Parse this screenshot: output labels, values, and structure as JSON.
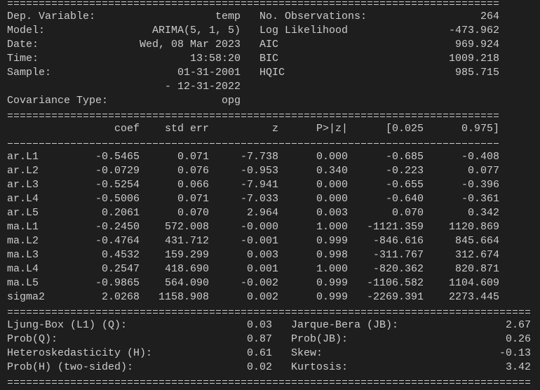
{
  "summary": {
    "header_rows": [
      {
        "label": "Dep. Variable:",
        "value": "temp",
        "label2": "No. Observations:",
        "value2": "264"
      },
      {
        "label": "Model:",
        "value": "ARIMA(5, 1, 5)",
        "label2": "Log Likelihood",
        "value2": "-473.962"
      },
      {
        "label": "Date:",
        "value": "Wed, 08 Mar 2023",
        "label2": "AIC",
        "value2": "969.924"
      },
      {
        "label": "Time:",
        "value": "13:58:20",
        "label2": "BIC",
        "value2": "1009.218"
      },
      {
        "label": "Sample:",
        "value": "01-31-2001",
        "label2": "HQIC",
        "value2": "985.715"
      },
      {
        "value": "- 12-31-2022"
      },
      {
        "label": "Covariance Type:",
        "value": "opg"
      }
    ],
    "coef_table": {
      "columns": [
        "coef",
        "std err",
        "z",
        "P>|z|",
        "[0.025",
        "0.975]"
      ],
      "rows": [
        {
          "name": "ar.L1",
          "cells": [
            "-0.5465",
            "0.071",
            "-7.738",
            "0.000",
            "-0.685",
            "-0.408"
          ]
        },
        {
          "name": "ar.L2",
          "cells": [
            "-0.0729",
            "0.076",
            "-0.953",
            "0.340",
            "-0.223",
            "0.077"
          ]
        },
        {
          "name": "ar.L3",
          "cells": [
            "-0.5254",
            "0.066",
            "-7.941",
            "0.000",
            "-0.655",
            "-0.396"
          ]
        },
        {
          "name": "ar.L4",
          "cells": [
            "-0.5006",
            "0.071",
            "-7.033",
            "0.000",
            "-0.640",
            "-0.361"
          ]
        },
        {
          "name": "ar.L5",
          "cells": [
            "0.2061",
            "0.070",
            "2.964",
            "0.003",
            "0.070",
            "0.342"
          ]
        },
        {
          "name": "ma.L1",
          "cells": [
            "-0.2450",
            "572.008",
            "-0.000",
            "1.000",
            "-1121.359",
            "1120.869"
          ]
        },
        {
          "name": "ma.L2",
          "cells": [
            "-0.4764",
            "431.712",
            "-0.001",
            "0.999",
            "-846.616",
            "845.664"
          ]
        },
        {
          "name": "ma.L3",
          "cells": [
            "0.4532",
            "159.299",
            "0.003",
            "0.998",
            "-311.767",
            "312.674"
          ]
        },
        {
          "name": "ma.L4",
          "cells": [
            "0.2547",
            "418.690",
            "0.001",
            "1.000",
            "-820.362",
            "820.871"
          ]
        },
        {
          "name": "ma.L5",
          "cells": [
            "-0.9865",
            "564.090",
            "-0.002",
            "0.999",
            "-1106.582",
            "1104.609"
          ]
        },
        {
          "name": "sigma2",
          "cells": [
            "2.0268",
            "1158.908",
            "0.002",
            "0.999",
            "-2269.391",
            "2273.445"
          ]
        }
      ]
    },
    "diagnostics": [
      {
        "label": "Ljung-Box (L1) (Q):",
        "value": "0.03",
        "label2": "Jarque-Bera (JB):",
        "value2": "2.67"
      },
      {
        "label": "Prob(Q):",
        "value": "0.87",
        "label2": "Prob(JB):",
        "value2": "0.26"
      },
      {
        "label": "Heteroskedasticity (H):",
        "value": "0.61",
        "label2": "Skew:",
        "value2": "-0.13"
      },
      {
        "label": "Prob(H) (two-sided):",
        "value": "0.02",
        "label2": "Kurtosis:",
        "value2": "3.42"
      }
    ]
  }
}
